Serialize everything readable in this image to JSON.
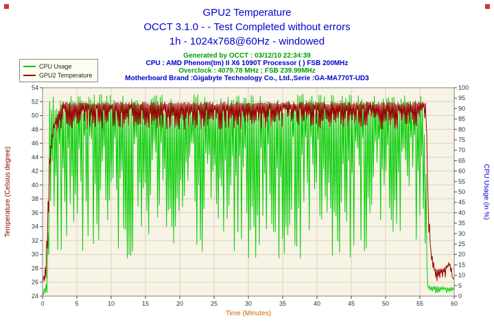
{
  "header": {
    "title_color": "#0000d0",
    "title_lines": [
      "GPU2 Temperature",
      "OCCT 3.1.0 -  - Test Completed without errors",
      "1h - 1024x768@60Hz - windowed"
    ],
    "info_lines": [
      {
        "text": "Generated by OCCT : 03/12/10 22:34:39",
        "color": "#00a000"
      },
      {
        "text": "CPU : AMD Phenom(tm) II X6 1090T Processor ( ) FSB 200MHz",
        "color": "#0000c8"
      },
      {
        "text": "Overclock : 4079.78 MHz ; FSB 239.99MHz",
        "color": "#00a000"
      },
      {
        "text": "Motherboard Brand :Gigabyte Technology Co., Ltd.,Serie :GA-MA770T-UD3",
        "color": "#0000c8"
      }
    ]
  },
  "legend": {
    "position": "top-left",
    "items": [
      {
        "label": "CPU Usage",
        "color": "#00c000"
      },
      {
        "label": "GPU2 Temperature",
        "color": "#990000"
      }
    ]
  },
  "chart_data": {
    "type": "line",
    "title": "GPU2 Temperature",
    "xlabel": "Time (Minutes)",
    "xlabel_color": "#cc6600",
    "x_range": [
      0,
      60
    ],
    "x_tick_step": 5,
    "grid": true,
    "plot_bg": "#f7f3e5",
    "grid_color": "#d9d2bd",
    "tick_text_color": "#303030",
    "axes": {
      "left": {
        "label": "Temperature (Celsius degree)",
        "color": "#8b0000",
        "range": [
          24,
          54
        ],
        "tick_step": 2
      },
      "right": {
        "label": "CPU Usage (in %)",
        "color": "#0000cc",
        "range": [
          0,
          100
        ],
        "tick_step": 5
      }
    },
    "series": [
      {
        "name": "CPU Usage",
        "axis": "right",
        "color": "#00cc00",
        "style": "noisy",
        "description": "Oscillates rapidly between ~20% and ~97% from minute 1 to minute 56, near 0% before the test starts and ~2% after it ends.",
        "envelope": [
          [
            0,
            0,
            2
          ],
          [
            0.7,
            0,
            8
          ],
          [
            1.0,
            18,
            96
          ],
          [
            3,
            18,
            97
          ],
          [
            55.5,
            18,
            97
          ],
          [
            55.9,
            15,
            60
          ],
          [
            56.1,
            1,
            5
          ],
          [
            60,
            1,
            4
          ]
        ]
      },
      {
        "name": "GPU2 Temperature",
        "axis": "left",
        "color": "#990000",
        "style": "noisy",
        "description": "Idles at ~26°C, ramps to a noisy plateau of ~48-52°C from minute 2 to minute 56, then falls back to ~26-29°C.",
        "envelope": [
          [
            0,
            26,
            26
          ],
          [
            0.5,
            26,
            29
          ],
          [
            1.0,
            38,
            44
          ],
          [
            1.6,
            46,
            49
          ],
          [
            3,
            48,
            52
          ],
          [
            54,
            48,
            52
          ],
          [
            55.9,
            49,
            52
          ],
          [
            56.2,
            34,
            38
          ],
          [
            56.6,
            28,
            31
          ],
          [
            57.2,
            26,
            28
          ],
          [
            58.5,
            26,
            28
          ],
          [
            59.3,
            27,
            29
          ],
          [
            60,
            26,
            27
          ]
        ]
      }
    ]
  }
}
